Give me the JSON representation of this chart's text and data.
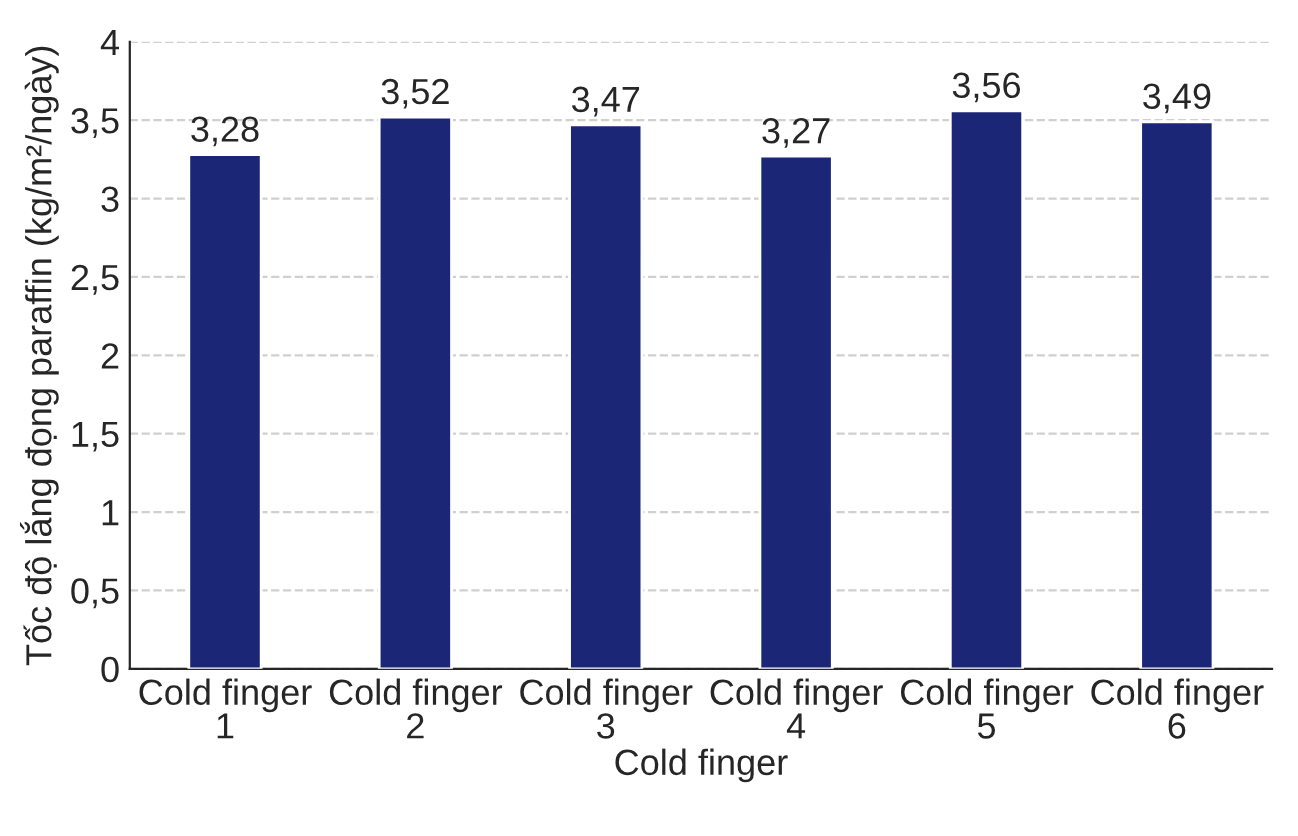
{
  "chart_data": {
    "type": "bar",
    "xlabel": "Cold finger",
    "ylabel": "Tốc độ lắng đọng paraffin (kg/m²/ngày)",
    "categories": [
      "Cold finger\n1",
      "Cold finger\n2",
      "Cold finger\n3",
      "Cold finger\n4",
      "Cold finger\n5",
      "Cold finger\n6"
    ],
    "values": [
      3.28,
      3.52,
      3.47,
      3.27,
      3.56,
      3.49
    ],
    "value_labels": [
      "3,28",
      "3,52",
      "3,47",
      "3,27",
      "3,56",
      "3,49"
    ],
    "color": "#1c2677",
    "ylim": [
      0,
      4
    ],
    "yticks": [
      0,
      {
        "value": 0.5,
        "label": "0,5"
      },
      1,
      {
        "value": 1.5,
        "label": "1,5"
      },
      2,
      {
        "value": 2.5,
        "label": "2,5"
      },
      3,
      {
        "value": 3.5,
        "label": "3,5"
      },
      4
    ],
    "grid": "y"
  }
}
